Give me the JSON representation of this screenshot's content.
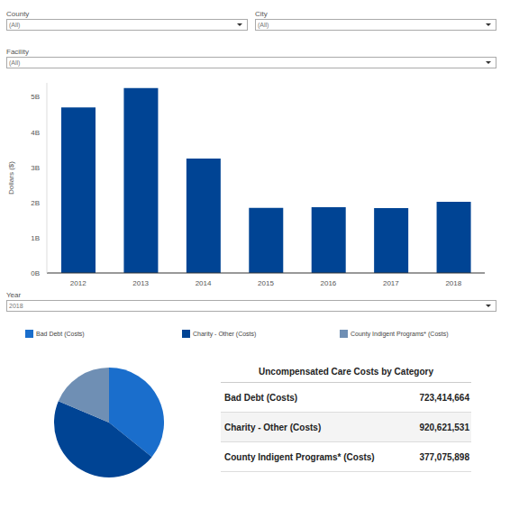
{
  "filters": [
    {
      "label": "County",
      "value": "(All)"
    },
    {
      "label": "City",
      "value": "(All)"
    },
    {
      "label": "Facility",
      "value": "(All)"
    }
  ],
  "year_filter": {
    "label": "Year",
    "value": "2018"
  },
  "chart_data": [
    {
      "type": "bar",
      "y_label": "Dollars ($)",
      "categories": [
        "2012",
        "2013",
        "2014",
        "2015",
        "2016",
        "2017",
        "2018"
      ],
      "values": [
        4700000000,
        5250000000,
        3250000000,
        1850000000,
        1870000000,
        1840000000,
        2021112093
      ],
      "color": "#004494",
      "ylim": [
        0,
        5400000000
      ],
      "yticks": [
        {
          "value": 0,
          "label": "0B"
        },
        {
          "value": 1000000000,
          "label": "1B"
        },
        {
          "value": 2000000000,
          "label": "2B"
        },
        {
          "value": 3000000000,
          "label": "3B"
        },
        {
          "value": 4000000000,
          "label": "4B"
        },
        {
          "value": 5000000000,
          "label": "5B"
        }
      ],
      "grid": false
    },
    {
      "type": "pie",
      "categories": [
        "Bad Debt (Costs)",
        "Charity - Other (Costs)",
        "County Indigent Programs* (Costs)"
      ],
      "values": [
        723414664,
        920621531,
        377075898
      ],
      "colors": [
        "#1a6ecc",
        "#004494",
        "#6f8fb4"
      ],
      "legend": "top"
    }
  ],
  "table": {
    "title": "Uncompensated Care Costs by Category",
    "rows": [
      [
        "Bad Debt (Costs)",
        "723,414,664"
      ],
      [
        "Charity - Other (Costs)",
        "920,621,531"
      ],
      [
        "County Indigent Programs* (Costs)",
        "377,075,898"
      ]
    ]
  }
}
